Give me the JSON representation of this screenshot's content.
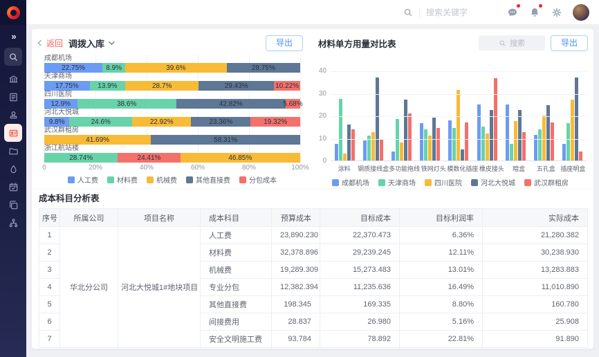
{
  "topbar": {
    "search_placeholder": "搜索关键字",
    "icons": [
      "search-icon",
      "message-icon",
      "bell-icon",
      "gear-icon",
      "avatar"
    ],
    "badges": {
      "message": true,
      "bell": true
    }
  },
  "sidebar": {
    "collapse_glyph": "»",
    "icons": [
      "collapse-icon",
      "search-icon",
      "bank-icon",
      "document-edit-icon",
      "stamp-icon",
      "badge-card-icon",
      "folder-icon",
      "drop-icon",
      "calendar-check-icon",
      "copy-icon",
      "workflow-icon"
    ],
    "active_icon": "badge-card-icon"
  },
  "left_panel": {
    "back_label": "返回",
    "title": "调拨入库",
    "export_label": "导出"
  },
  "right_panel": {
    "title": "材料单方用量对比表",
    "search_placeholder": "搜索",
    "export_label": "导出"
  },
  "colors": {
    "accent_blue": "#4e8df2",
    "back_red": "#f0625d",
    "sidebar_active": "#e64a40",
    "series_blue": "#6c9bf3",
    "series_green": "#66d3a9",
    "series_yellow": "#f8bb37",
    "series_slate": "#5d7795",
    "series_red": "#f4706b"
  },
  "chart_data": [
    {
      "type": "stacked-bar-horizontal",
      "title": "调拨入库",
      "x_ticks": [
        "0",
        "20%",
        "40%",
        "60%",
        "80%",
        "100%"
      ],
      "xlim": [
        0,
        100
      ],
      "series": [
        {
          "name": "人工费",
          "color": "#6c9bf3"
        },
        {
          "name": "材料费",
          "color": "#66d3a9"
        },
        {
          "name": "机械费",
          "color": "#f8bb37"
        },
        {
          "name": "其他直接费",
          "color": "#5d7795"
        },
        {
          "name": "分包成本",
          "color": "#f4706b"
        }
      ],
      "rows": [
        {
          "category": "成都机场",
          "segments": [
            {
              "series": 0,
              "value": 22.75
            },
            {
              "series": 1,
              "value": 8.9
            },
            {
              "series": 2,
              "value": 39.6
            },
            {
              "series": 3,
              "value": 28.75
            }
          ]
        },
        {
          "category": "天津商场",
          "segments": [
            {
              "series": 0,
              "value": 17.75
            },
            {
              "series": 1,
              "value": 13.9
            },
            {
              "series": 2,
              "value": 28.7
            },
            {
              "series": 3,
              "value": 29.43
            },
            {
              "series": 4,
              "value": 10.22
            }
          ]
        },
        {
          "category": "四川医院",
          "segments": [
            {
              "series": 0,
              "value": 12.9
            },
            {
              "series": 1,
              "value": 38.6
            },
            {
              "series": 3,
              "value": 42.82
            },
            {
              "series": 4,
              "value": 5.68
            }
          ]
        },
        {
          "category": "河北大悦城",
          "segments": [
            {
              "series": 0,
              "value": 9.8
            },
            {
              "series": 1,
              "value": 24.6
            },
            {
              "series": 2,
              "value": 22.92
            },
            {
              "series": 3,
              "value": 23.36
            },
            {
              "series": 4,
              "value": 19.32
            }
          ]
        },
        {
          "category": "武汉群租房",
          "segments": [
            {
              "series": 2,
              "value": 41.69
            },
            {
              "series": 3,
              "value": 58.31
            }
          ]
        },
        {
          "category": "浙江航站楼",
          "segments": [
            {
              "series": 1,
              "value": 28.74
            },
            {
              "series": 4,
              "value": 24.41
            },
            {
              "series": 2,
              "value": 46.85
            }
          ]
        }
      ],
      "legend_position": "bottom"
    },
    {
      "type": "bar",
      "title": "材料单方用量对比表",
      "categories": [
        "涂料",
        "钢质接线盒",
        "多功能拖线",
        "铁网灯头",
        "模数化插座",
        "橡皮接头",
        "暗盒",
        "五孔盒",
        "插座明盒"
      ],
      "yticks": [
        0,
        10,
        20,
        30,
        40
      ],
      "ylim": [
        0,
        40
      ],
      "grid": true,
      "legend_position": "bottom",
      "series": [
        {
          "name": "成都机场",
          "color": "#6c9bf3",
          "values": [
            7.5,
            9,
            4,
            16.5,
            18,
            25,
            25,
            11.5,
            7.5
          ]
        },
        {
          "name": "天津商场",
          "color": "#66d3a9",
          "values": [
            27.5,
            11,
            18.5,
            14,
            14.5,
            15,
            7.5,
            14,
            16.5
          ]
        },
        {
          "name": "四川医院",
          "color": "#f8bb37",
          "values": [
            3,
            12.5,
            8,
            11,
            31.5,
            12,
            17.5,
            20,
            27
          ]
        },
        {
          "name": "河北大悦城",
          "color": "#5d7795",
          "values": [
            16,
            37,
            27,
            19,
            5,
            22.5,
            22.5,
            24.5,
            37
          ]
        },
        {
          "name": "武汉群租房",
          "color": "#f4706b",
          "values": [
            14,
            9.5,
            21,
            14.5,
            17,
            36.5,
            12.5,
            17,
            4
          ]
        }
      ]
    }
  ],
  "table_section": {
    "title": "成本科目分析表",
    "columns": [
      "序号",
      "所属公司",
      "项目名称",
      "成本科目",
      "预算成本",
      "目标成本",
      "目标利润率",
      "实际成本"
    ],
    "company": "华北分公司",
    "project": "河北大悦城1#地块项目",
    "rows": [
      {
        "no": "1",
        "subject": "人工费",
        "budget": "23,890.230",
        "target": "22,370.473",
        "margin": "6.36%",
        "actual": "21,280.382"
      },
      {
        "no": "2",
        "subject": "材料费",
        "budget": "32,378.896",
        "target": "29,239.245",
        "margin": "12.11%",
        "actual": "30,238.930"
      },
      {
        "no": "3",
        "subject": "机械费",
        "budget": "19,289.309",
        "target": "15,273.483",
        "margin": "13.01%",
        "actual": "13,283.883"
      },
      {
        "no": "4",
        "subject": "专业分包",
        "budget": "12,382.394",
        "target": "11,235.636",
        "margin": "16.49%",
        "actual": "11,010.890"
      },
      {
        "no": "5",
        "subject": "其他直接费",
        "budget": "198.345",
        "target": "169.335",
        "margin": "8.80%",
        "actual": "160.780"
      },
      {
        "no": "6",
        "subject": "间接费用",
        "budget": "28.837",
        "target": "26.980",
        "margin": "5.16%",
        "actual": "25.908"
      },
      {
        "no": "7",
        "subject": "安全文明施工费",
        "budget": "93.784",
        "target": "78.892",
        "margin": "22.81%",
        "actual": "91.890"
      }
    ]
  }
}
